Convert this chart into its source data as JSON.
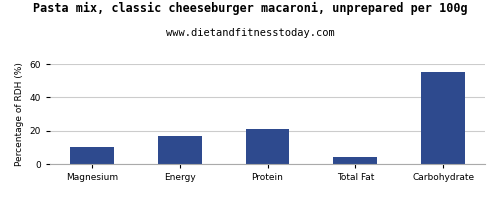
{
  "title": "Pasta mix, classic cheeseburger macaroni, unprepared per 100g",
  "subtitle": "www.dietandfitnesstoday.com",
  "ylabel": "Percentage of RDH (%)",
  "categories": [
    "Magnesium",
    "Energy",
    "Protein",
    "Total Fat",
    "Carbohydrate"
  ],
  "values": [
    10,
    17,
    21,
    4,
    55
  ],
  "bar_color": "#2e4a8e",
  "ylim": [
    0,
    60
  ],
  "yticks": [
    0,
    20,
    40,
    60
  ],
  "background_color": "#ffffff",
  "grid_color": "#cccccc",
  "title_fontsize": 8.5,
  "subtitle_fontsize": 7.5,
  "xlabel_fontsize": 8.5,
  "ylabel_fontsize": 6.5,
  "tick_fontsize": 6.5,
  "border_color": "#aaaaaa"
}
